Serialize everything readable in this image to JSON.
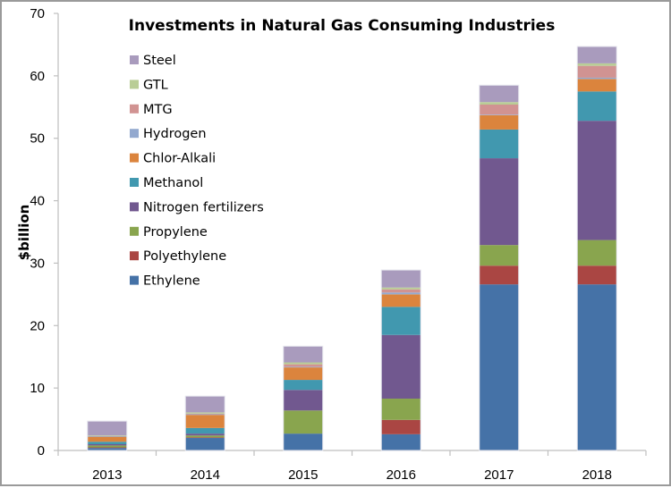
{
  "chart_data": {
    "type": "bar",
    "stacked": true,
    "title": "Investments in Natural Gas Consuming Industries",
    "xlabel": "",
    "ylabel": "$billion",
    "ylim": [
      0,
      70
    ],
    "yticks": [
      0,
      10,
      20,
      30,
      40,
      50,
      60,
      70
    ],
    "grid": false,
    "legend_position": "top-left",
    "categories": [
      "2013",
      "2014",
      "2015",
      "2016",
      "2017",
      "2018"
    ],
    "series": [
      {
        "name": "Ethylene",
        "color": "#4572A7",
        "values": [
          0.4,
          2.0,
          2.7,
          2.6,
          26.6,
          26.6
        ]
      },
      {
        "name": "Polyethylene",
        "color": "#AA4643",
        "values": [
          0.1,
          0.1,
          0.0,
          2.3,
          3.0,
          3.0
        ]
      },
      {
        "name": "Propylene",
        "color": "#89A54E",
        "values": [
          0.3,
          0.3,
          3.7,
          3.4,
          3.3,
          4.1
        ]
      },
      {
        "name": "Nitrogen fertilizers",
        "color": "#71588F",
        "values": [
          0.2,
          0.3,
          3.3,
          10.2,
          13.9,
          19.1
        ]
      },
      {
        "name": "Methanol",
        "color": "#4198AF",
        "values": [
          0.4,
          0.9,
          1.6,
          4.5,
          4.6,
          4.7
        ]
      },
      {
        "name": "Chlor-Alkali",
        "color": "#DB843D",
        "values": [
          0.8,
          2.1,
          2.0,
          2.0,
          2.3,
          2.0
        ]
      },
      {
        "name": "Hydrogen",
        "color": "#93A9CF",
        "values": [
          0.1,
          0.1,
          0.1,
          0.3,
          0.1,
          0.2
        ]
      },
      {
        "name": "MTG",
        "color": "#D19392",
        "values": [
          0.0,
          0.1,
          0.4,
          0.5,
          1.6,
          1.9
        ]
      },
      {
        "name": "GTL",
        "color": "#B9CD96",
        "values": [
          0.1,
          0.2,
          0.3,
          0.3,
          0.4,
          0.4
        ]
      },
      {
        "name": "Steel",
        "color": "#A99BBD",
        "values": [
          2.3,
          2.6,
          2.6,
          2.8,
          2.7,
          2.7
        ]
      }
    ]
  }
}
